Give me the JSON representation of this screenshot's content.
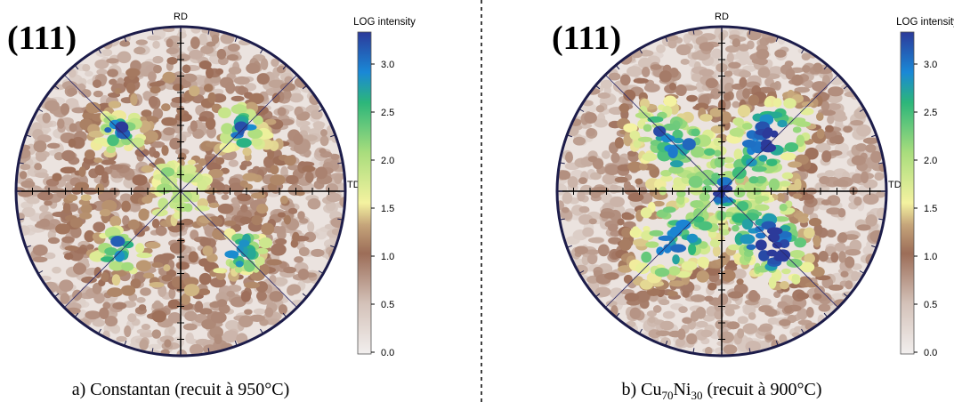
{
  "panels": [
    {
      "label": "(111)",
      "rd": "RD",
      "td": "TD",
      "colorbar": {
        "title": "LOG intensity",
        "ticks": [
          "0.0",
          "0.5",
          "1.0",
          "1.5",
          "2.0",
          "2.5",
          "3.0"
        ]
      },
      "caption": [
        "a) Constantan (recuit à 950°C)"
      ]
    },
    {
      "label": "(111)",
      "rd": "RD",
      "td": "TD",
      "colorbar": {
        "title": "LOG intensity",
        "ticks": [
          "0.0",
          "0.5",
          "1.0",
          "1.5",
          "2.0",
          "2.5",
          "3.0"
        ]
      },
      "caption": [
        "b) Cu",
        "70",
        "Ni",
        "30",
        " (recuit à 900°C)"
      ]
    }
  ]
}
